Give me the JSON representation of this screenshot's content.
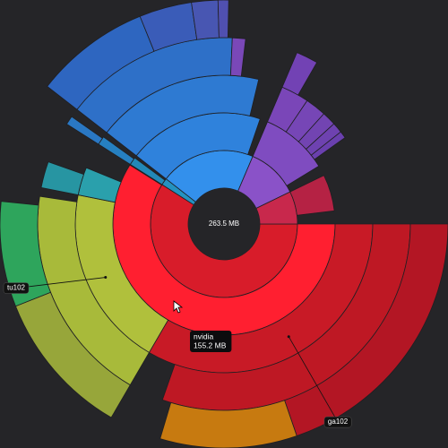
{
  "chart_data": {
    "type": "sunburst",
    "root": {
      "value": 263.5,
      "value_label": "263.5 MB",
      "children": [
        {
          "value": 155.5,
          "color": "#d81c2a",
          "children": [
            {
              "name": "nvidia",
              "value": 155.2,
              "value_label": "155.2 MB",
              "hovered": true,
              "color": "#ff1f30",
              "children": [
                {
                  "name": "ga102",
                  "value": 88,
                  "callout": true,
                  "color": "#c81a26",
                  "children": [
                    {
                      "value": 80,
                      "color": "#be1824",
                      "children": [
                        {
                          "value": 52,
                          "color": "#b31624"
                        },
                        {
                          "value": 26,
                          "color": "#c77a10"
                        }
                      ]
                    }
                  ]
                },
                {
                  "name": "tu102",
                  "value": 52,
                  "callout": true,
                  "color": "#b0c03c",
                  "children": [
                    {
                      "value": 50,
                      "color": "#a8ba3a",
                      "children": [
                        {
                          "value": 28,
                          "color": "#97a63a"
                        },
                        {
                          "value": 20,
                          "color": "#2ea55c"
                        }
                      ]
                    }
                  ]
                },
                {
                  "value": 8,
                  "color": "#2aa0ac",
                  "children": [
                    {
                      "value": 6,
                      "color": "#2795a2"
                    }
                  ]
                }
              ]
            }
          ]
        },
        {
          "value": 4,
          "color": "#2492c0",
          "children": [
            {
              "value": 3,
              "color": "#2389b8",
              "children": [
                {
                  "value": 2.5,
                  "color": "#2680c0",
                  "children": [
                    {
                      "value": 2,
                      "color": "#2a78c4"
                    }
                  ]
                }
              ]
            }
          ]
        },
        {
          "value": 55,
          "color": "#3390ec",
          "children": [
            {
              "value": 52,
              "color": "#2f82dc",
              "children": [
                {
                  "value": 48,
                  "color": "#2e7ad2",
                  "children": [
                    {
                      "value": 40,
                      "color": "#2e70c8",
                      "children": [
                        {
                          "value": 22,
                          "color": "#2e66c0"
                        },
                        {
                          "value": 10,
                          "color": "#3a5cb8"
                        },
                        {
                          "value": 5,
                          "color": "#4856b2"
                        },
                        {
                          "value": 2,
                          "color": "#5050b0"
                        }
                      ]
                    },
                    {
                      "value": 3,
                      "color": "#7a48b8"
                    }
                  ]
                }
              ]
            }
          ]
        },
        {
          "value": 30,
          "color": "#8a52c8",
          "children": [
            {
              "value": 26,
              "color": "#7f4cc0",
              "children": [
                {
                  "value": 8,
                  "color": "#7a46b8",
                  "children": [
                    {
                      "value": 5,
                      "color": "#7242b4"
                    }
                  ]
                },
                {
                  "value": 6,
                  "color": "#7646b6"
                },
                {
                  "value": 4,
                  "color": "#7244b2"
                },
                {
                  "value": 3,
                  "color": "#6e42b0"
                },
                {
                  "value": 2,
                  "color": "#6a40ae"
                }
              ]
            }
          ]
        },
        {
          "value": 19,
          "color": "#c8284c",
          "children": [
            {
              "value": 14,
              "color": "#b52244"
            }
          ]
        }
      ]
    }
  }
}
